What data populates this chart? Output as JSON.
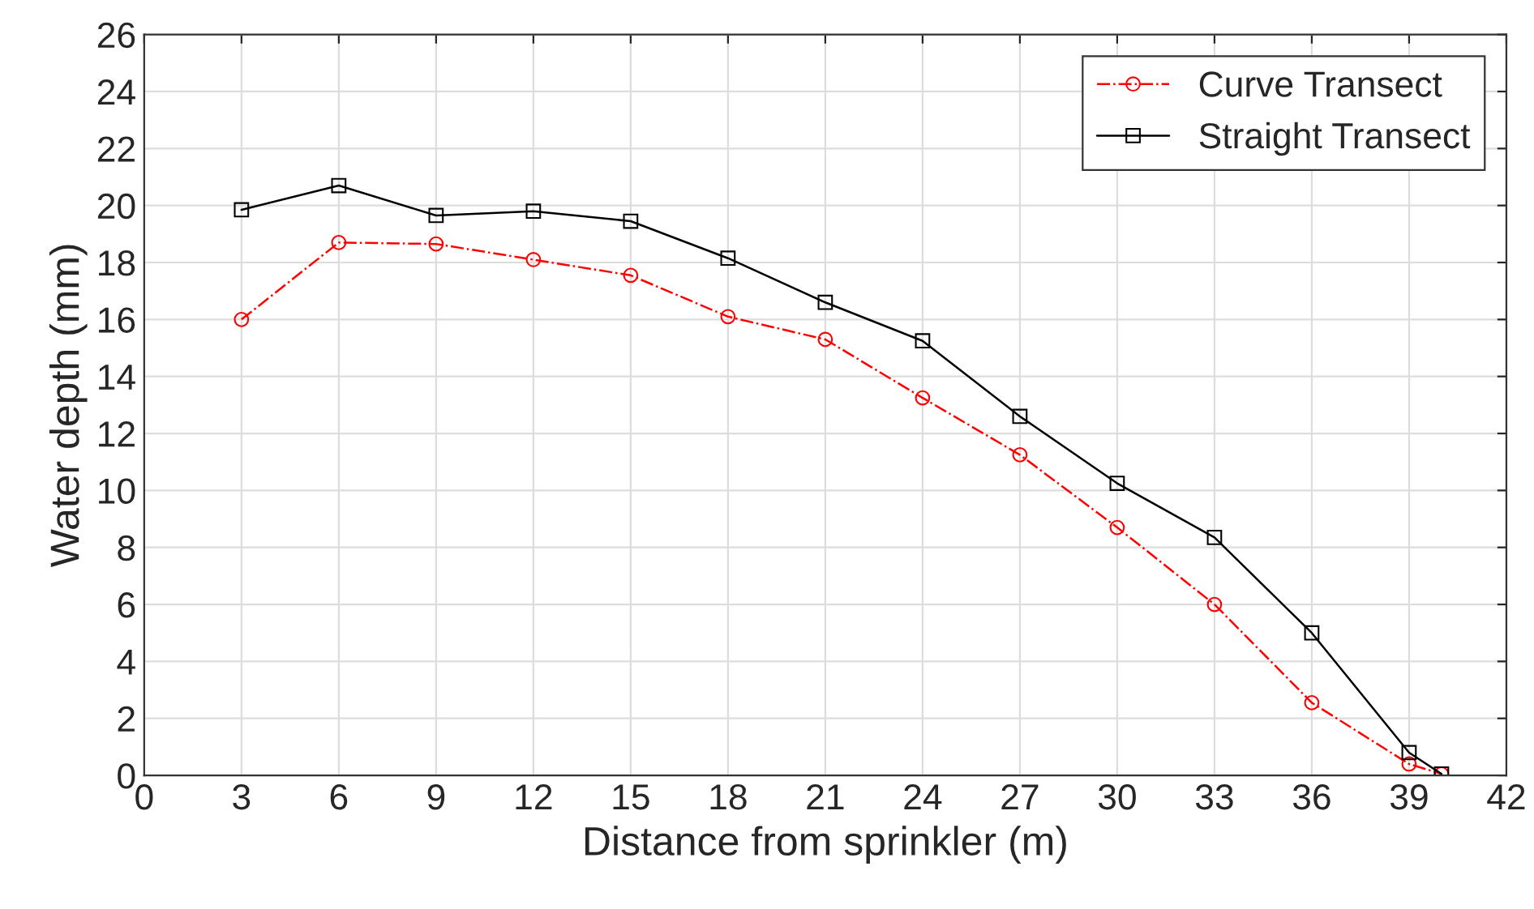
{
  "chart_data": {
    "type": "line",
    "xlabel": "Distance from sprinkler (m)",
    "ylabel": "Water depth (mm)",
    "xlim": [
      0,
      42
    ],
    "xticks": [
      0,
      3,
      6,
      9,
      12,
      15,
      18,
      21,
      24,
      27,
      30,
      33,
      36,
      39,
      42
    ],
    "ylim": [
      0,
      26
    ],
    "yticks": [
      0,
      2,
      4,
      6,
      8,
      10,
      12,
      14,
      16,
      18,
      20,
      22,
      24,
      26
    ],
    "grid": true,
    "legend": "top right",
    "series": [
      {
        "name": "Curve Transect",
        "color": "#ff0000",
        "marker": "circle",
        "line_style": "dashdot",
        "x": [
          3,
          6,
          9,
          12,
          15,
          18,
          21,
          24,
          27,
          30,
          33,
          36,
          39,
          40
        ],
        "values": [
          16.0,
          18.7,
          18.65,
          18.1,
          17.55,
          16.1,
          15.3,
          13.25,
          11.25,
          8.7,
          6.0,
          2.55,
          0.4,
          0.05
        ]
      },
      {
        "name": "Straight Transect",
        "color": "#000000",
        "marker": "square",
        "line_style": "solid",
        "x": [
          3,
          6,
          9,
          12,
          15,
          18,
          21,
          24,
          27,
          30,
          33,
          36,
          39,
          40
        ],
        "values": [
          19.85,
          20.7,
          19.65,
          19.8,
          19.45,
          18.15,
          16.6,
          15.25,
          12.6,
          10.25,
          8.35,
          5.0,
          0.8,
          0.05
        ]
      }
    ]
  }
}
